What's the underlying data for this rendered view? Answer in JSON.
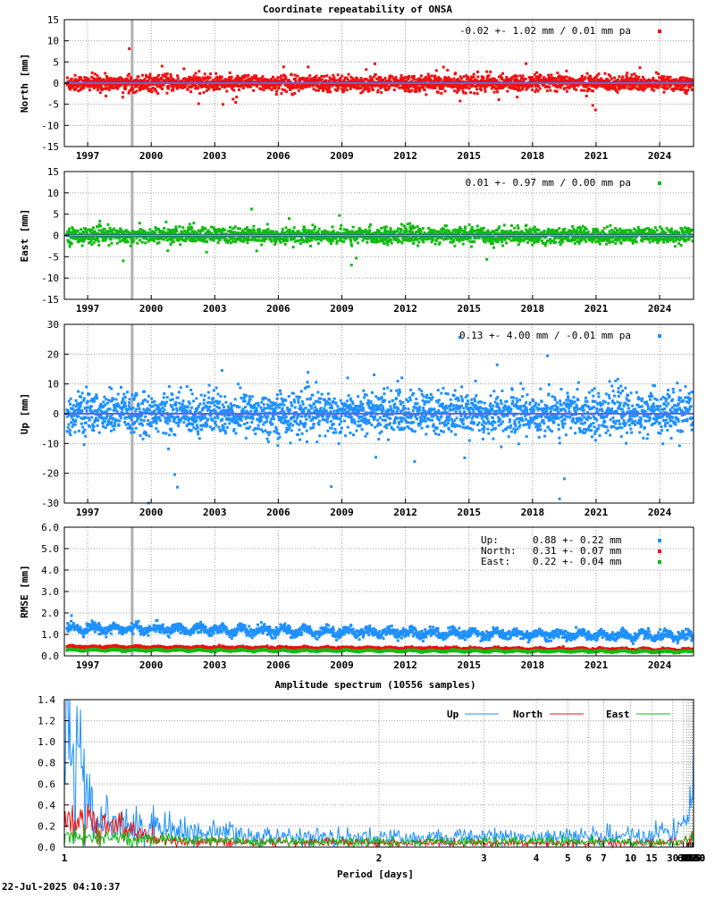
{
  "title": "Coordinate repeatability of ONSA",
  "colors": {
    "up": "#1e90ff",
    "north": "#ee1111",
    "east": "#11bb11",
    "vline": "#b0b0b0",
    "zero": "#3333cc"
  },
  "footer_timestamp": "22-Jul-2025 04:10:37",
  "chart_data": [
    {
      "type": "scatter",
      "name": "north-panel",
      "ylabel": "North [mm]",
      "ylim": [
        -15,
        15
      ],
      "yticks": [
        -15,
        -10,
        -5,
        0,
        5,
        10,
        15
      ],
      "xlim": [
        1995.9,
        2025.6
      ],
      "xticks": [
        1997,
        2000,
        2003,
        2006,
        2009,
        2012,
        2015,
        2018,
        2021,
        2024
      ],
      "annotation": "-0.02 +- 1.02 mm /  0.01 mm pa",
      "mean": -0.02,
      "scatter": 1.02,
      "trend": 0.01,
      "series_color": "north",
      "gap_year": 1999.1
    },
    {
      "type": "scatter",
      "name": "east-panel",
      "ylabel": "East [mm]",
      "ylim": [
        -15,
        15
      ],
      "yticks": [
        -15,
        -10,
        -5,
        0,
        5,
        10,
        15
      ],
      "xlim": [
        1995.9,
        2025.6
      ],
      "xticks": [
        1997,
        2000,
        2003,
        2006,
        2009,
        2012,
        2015,
        2018,
        2021,
        2024
      ],
      "annotation": "0.01 +- 0.97 mm /  0.00 mm pa",
      "mean": 0.01,
      "scatter": 0.97,
      "trend": 0.0,
      "series_color": "east",
      "gap_year": 1999.1
    },
    {
      "type": "scatter",
      "name": "up-panel",
      "ylabel": "Up [mm]",
      "ylim": [
        -30,
        30
      ],
      "yticks": [
        -30,
        -20,
        -10,
        0,
        10,
        20,
        30
      ],
      "xlim": [
        1995.9,
        2025.6
      ],
      "xticks": [
        1997,
        2000,
        2003,
        2006,
        2009,
        2012,
        2015,
        2018,
        2021,
        2024
      ],
      "annotation": "0.13 +- 4.00 mm / -0.01 mm pa",
      "mean": 0.13,
      "scatter": 4.0,
      "trend": -0.01,
      "series_color": "up",
      "gap_year": 1999.1
    },
    {
      "type": "scatter",
      "name": "rmse-panel",
      "ylabel": "RMSE [mm]",
      "ylim": [
        0,
        6
      ],
      "yticks": [
        "0.0",
        "1.0",
        "2.0",
        "3.0",
        "4.0",
        "5.0",
        "6.0"
      ],
      "xlim": [
        1995.9,
        2025.6
      ],
      "xticks": [
        1997,
        2000,
        2003,
        2006,
        2009,
        2012,
        2015,
        2018,
        2021,
        2024
      ],
      "legend": [
        {
          "name": "Up:",
          "value": "0.88 +- 0.22 mm",
          "color": "up"
        },
        {
          "name": "North:",
          "value": "0.31 +- 0.07 mm",
          "color": "north"
        },
        {
          "name": "East:",
          "value": "0.22 +- 0.04 mm",
          "color": "east"
        }
      ],
      "gap_year": 1999.1
    },
    {
      "type": "line",
      "name": "spectrum-panel",
      "title": "Amplitude spectrum (10556 samples)",
      "xlabel": "Period [days]",
      "ylim": [
        0,
        1.4
      ],
      "yticks": [
        "0.0",
        "0.2",
        "0.4",
        "0.6",
        "0.8",
        "1.0",
        "1.2",
        "1.4"
      ],
      "x_scale": "reciprocal",
      "xticks": [
        1,
        2,
        3,
        4,
        5,
        6,
        7,
        10,
        15,
        30,
        61,
        91,
        122,
        183,
        365,
        730,
        2190,
        4380,
        8760
      ],
      "xtick_labels": [
        "1",
        "2",
        "3",
        "4",
        "5",
        "6",
        "7",
        "10",
        "15",
        "30",
        "61",
        "91",
        "122",
        "183",
        "365",
        "730",
        "2190",
        "4380",
        "8760"
      ],
      "legend_position": "top-right",
      "series": [
        {
          "name": "Up",
          "color": "up",
          "points": [
            [
              8760,
              0.95
            ],
            [
              6000,
              1.1
            ],
            [
              4380,
              1.3
            ],
            [
              3200,
              0.6
            ],
            [
              2600,
              0.35
            ],
            [
              2190,
              0.4
            ],
            [
              1800,
              0.42
            ],
            [
              1460,
              0.5
            ],
            [
              1300,
              0.3
            ],
            [
              1095,
              0.82
            ],
            [
              950,
              0.3
            ],
            [
              876,
              0.6
            ],
            [
              730,
              0.3
            ],
            [
              600,
              0.55
            ],
            [
              500,
              0.2
            ],
            [
              450,
              0.3
            ],
            [
              400,
              0.5
            ],
            [
              365,
              0.9
            ],
            [
              330,
              0.35
            ],
            [
              300,
              0.3
            ],
            [
              250,
              0.35
            ],
            [
              200,
              0.42
            ],
            [
              150,
              0.3
            ],
            [
              100,
              0.25
            ],
            [
              60,
              0.18
            ],
            [
              30,
              0.14
            ],
            [
              15,
              0.11
            ],
            [
              7,
              0.1
            ],
            [
              3,
              0.09
            ],
            [
              1.5,
              0.09
            ],
            [
              1.05,
              0.25
            ],
            [
              1,
              1.3
            ]
          ]
        },
        {
          "name": "North",
          "color": "north",
          "points": [
            [
              8760,
              0.15
            ],
            [
              4380,
              0.15
            ],
            [
              3000,
              0.38
            ],
            [
              2190,
              0.14
            ],
            [
              1500,
              0.07
            ],
            [
              1200,
              0.12
            ],
            [
              900,
              0.04
            ],
            [
              730,
              0.06
            ],
            [
              500,
              0.12
            ],
            [
              400,
              0.08
            ],
            [
              365,
              0.18
            ],
            [
              300,
              0.1
            ],
            [
              200,
              0.08
            ],
            [
              100,
              0.06
            ],
            [
              30,
              0.05
            ],
            [
              10,
              0.04
            ],
            [
              3,
              0.04
            ],
            [
              1.2,
              0.05
            ],
            [
              1,
              0.3
            ]
          ]
        },
        {
          "name": "East",
          "color": "east",
          "points": [
            [
              8760,
              0.2
            ],
            [
              5000,
              0.22
            ],
            [
              3000,
              0.12
            ],
            [
              2190,
              0.16
            ],
            [
              1500,
              0.14
            ],
            [
              1000,
              0.05
            ],
            [
              730,
              0.05
            ],
            [
              500,
              0.07
            ],
            [
              400,
              0.1
            ],
            [
              365,
              0.15
            ],
            [
              300,
              0.08
            ],
            [
              150,
              0.06
            ],
            [
              60,
              0.04
            ],
            [
              20,
              0.04
            ],
            [
              5,
              0.05
            ],
            [
              1.5,
              0.05
            ],
            [
              1,
              0.1
            ]
          ]
        }
      ]
    }
  ]
}
